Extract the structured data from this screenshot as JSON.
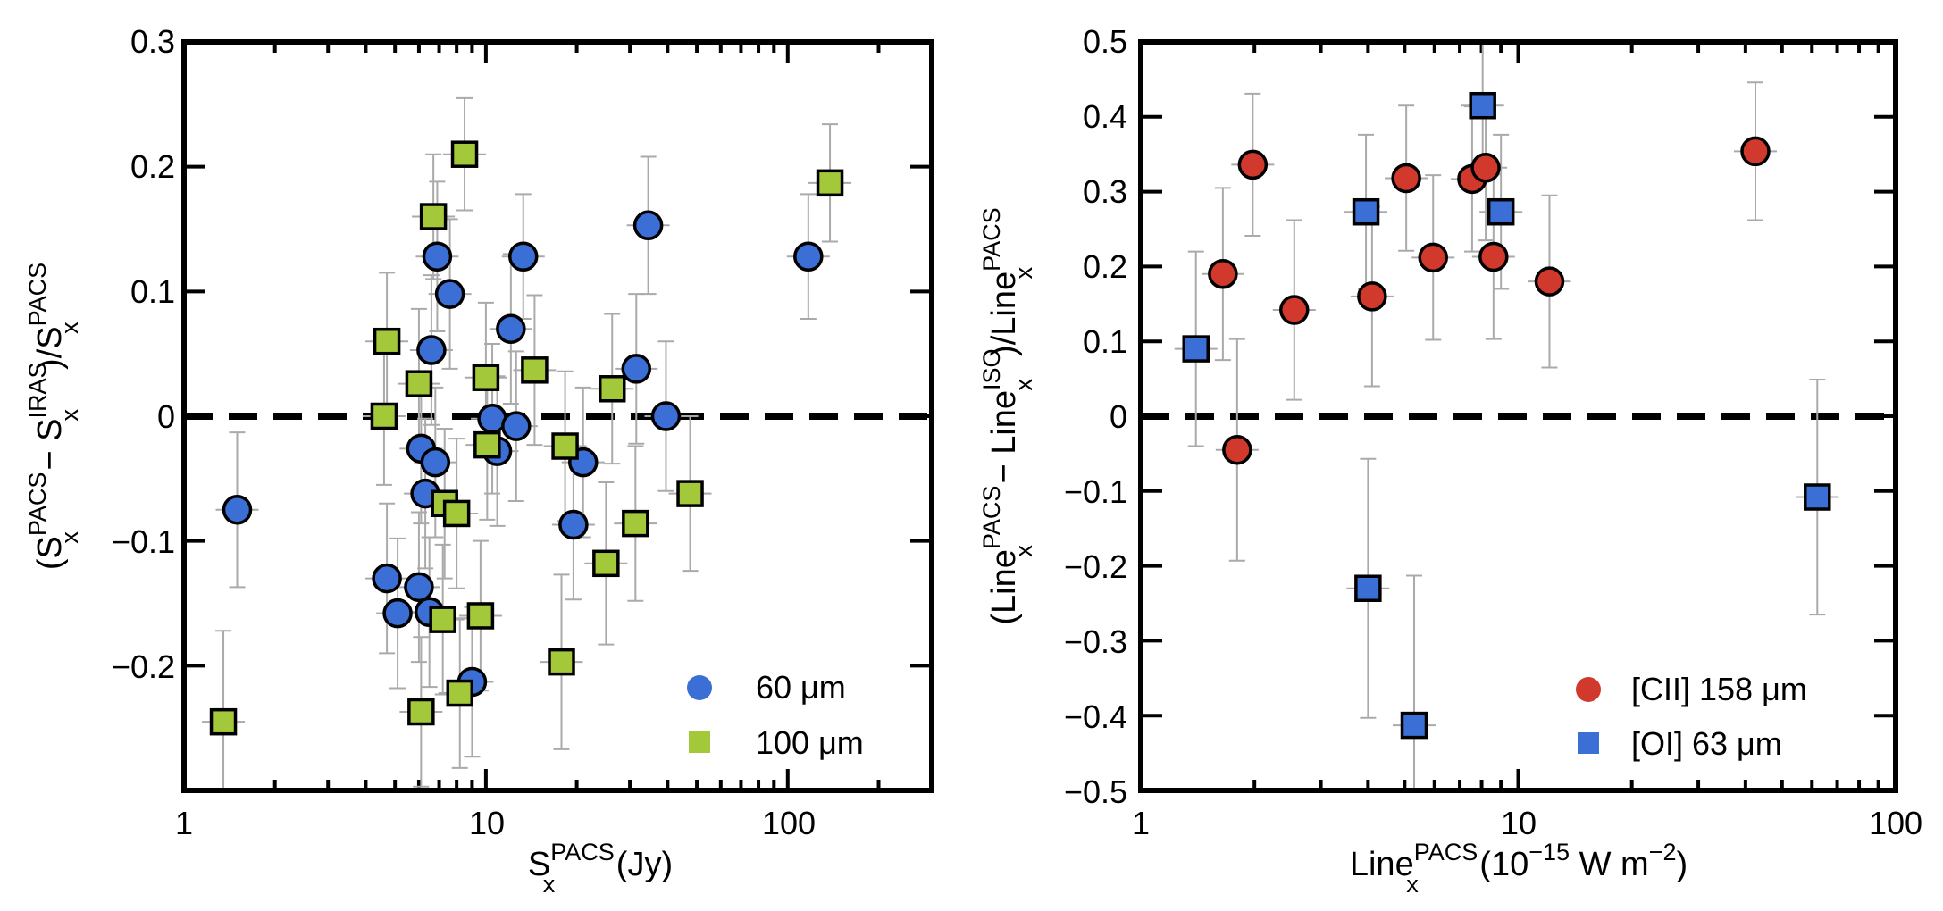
{
  "chart_data": [
    {
      "type": "scatter",
      "xscale": "log",
      "xlim": [
        1,
        300
      ],
      "ylim": [
        -0.3,
        0.3
      ],
      "yticks": [
        "0.3",
        "0.2",
        "0.1",
        "0",
        "−0.1",
        "−0.2"
      ],
      "ytick_values": [
        0.3,
        0.2,
        0.1,
        0,
        -0.1,
        -0.2
      ],
      "xticks": [
        "1",
        "10",
        "100"
      ],
      "xtick_values": [
        1,
        10,
        100
      ],
      "xlabel": {
        "main": "S",
        "sub": "x",
        "sup": "PACS",
        "unit": " (Jy)"
      },
      "ylabel": {
        "p1": "(S",
        "sup1": "PACS",
        "sub1": "x",
        "mid": " − S",
        "sup2": "IRAS",
        "sub2": "x",
        "p3": ")/S",
        "sup3": "PACS",
        "sub3": "x"
      },
      "reference_line": 0,
      "legend_position": "bottom-right",
      "series": [
        {
          "name": "60 μm",
          "marker": "circle",
          "color": "#3b6fd6",
          "points": [
            {
              "x": 1.5,
              "y": -0.075,
              "err": 0.062
            },
            {
              "x": 4.7,
              "y": -0.13,
              "err": 0.06
            },
            {
              "x": 5.1,
              "y": -0.158,
              "err": 0.06
            },
            {
              "x": 6.0,
              "y": -0.137,
              "err": 0.06
            },
            {
              "x": 6.1,
              "y": -0.026,
              "err": 0.06
            },
            {
              "x": 6.3,
              "y": -0.062,
              "err": 0.06
            },
            {
              "x": 6.5,
              "y": -0.157,
              "err": 0.06
            },
            {
              "x": 6.6,
              "y": 0.053,
              "err": 0.06
            },
            {
              "x": 6.8,
              "y": -0.037,
              "err": 0.06
            },
            {
              "x": 6.9,
              "y": 0.128,
              "err": 0.06
            },
            {
              "x": 7.6,
              "y": 0.098,
              "err": 0.06
            },
            {
              "x": 9.0,
              "y": -0.213,
              "err": 0.06
            },
            {
              "x": 10.5,
              "y": -0.002,
              "err": 0.06
            },
            {
              "x": 10.9,
              "y": -0.028,
              "err": 0.06
            },
            {
              "x": 12.1,
              "y": 0.07,
              "err": 0.06
            },
            {
              "x": 12.6,
              "y": -0.008,
              "err": 0.06
            },
            {
              "x": 13.3,
              "y": 0.128,
              "err": 0.05
            },
            {
              "x": 19.5,
              "y": -0.087,
              "err": 0.06
            },
            {
              "x": 21.0,
              "y": -0.037,
              "err": 0.06
            },
            {
              "x": 31.5,
              "y": 0.038,
              "err": 0.06
            },
            {
              "x": 34.5,
              "y": 0.153,
              "err": 0.055
            },
            {
              "x": 39.5,
              "y": 0.0,
              "err": 0.06
            },
            {
              "x": 117,
              "y": 0.128,
              "err": 0.05
            }
          ]
        },
        {
          "name": "100 μm",
          "marker": "square",
          "color": "#a3c93a",
          "points": [
            {
              "x": 1.35,
              "y": -0.245,
              "err": 0.073
            },
            {
              "x": 4.6,
              "y": 0.0,
              "err": 0.055
            },
            {
              "x": 4.7,
              "y": 0.06,
              "err": 0.055
            },
            {
              "x": 6.0,
              "y": 0.026,
              "err": 0.06
            },
            {
              "x": 6.1,
              "y": -0.237,
              "err": 0.06
            },
            {
              "x": 6.7,
              "y": 0.16,
              "err": 0.05
            },
            {
              "x": 7.2,
              "y": -0.163,
              "err": 0.06
            },
            {
              "x": 7.3,
              "y": -0.07,
              "err": 0.06
            },
            {
              "x": 8.0,
              "y": -0.078,
              "err": 0.06
            },
            {
              "x": 8.2,
              "y": -0.222,
              "err": 0.06
            },
            {
              "x": 8.5,
              "y": 0.21,
              "err": 0.045
            },
            {
              "x": 9.6,
              "y": -0.16,
              "err": 0.06
            },
            {
              "x": 10.0,
              "y": 0.031,
              "err": 0.06
            },
            {
              "x": 10.1,
              "y": -0.023,
              "err": 0.06
            },
            {
              "x": 14.5,
              "y": 0.037,
              "err": 0.06
            },
            {
              "x": 17.8,
              "y": -0.197,
              "err": 0.07
            },
            {
              "x": 18.3,
              "y": -0.024,
              "err": 0.06
            },
            {
              "x": 25.0,
              "y": -0.118,
              "err": 0.065
            },
            {
              "x": 26.2,
              "y": 0.022,
              "err": 0.06
            },
            {
              "x": 31.3,
              "y": -0.086,
              "err": 0.062
            },
            {
              "x": 47.5,
              "y": -0.062,
              "err": 0.062
            },
            {
              "x": 138,
              "y": 0.187,
              "err": 0.047
            }
          ]
        }
      ]
    },
    {
      "type": "scatter",
      "xscale": "log",
      "xlim": [
        1,
        100
      ],
      "ylim": [
        -0.5,
        0.5
      ],
      "yticks": [
        "0.5",
        "0.4",
        "0.3",
        "0.2",
        "0.1",
        "0",
        "−0.1",
        "−0.2",
        "−0.3",
        "−0.4",
        "−0.5"
      ],
      "ytick_values": [
        0.5,
        0.4,
        0.3,
        0.2,
        0.1,
        0,
        -0.1,
        -0.2,
        -0.3,
        -0.4,
        -0.5
      ],
      "xticks": [
        "1",
        "10",
        "100"
      ],
      "xtick_values": [
        1,
        10,
        100
      ],
      "xlabel": {
        "main": "Line",
        "sub": "x",
        "sup": "PACS",
        "unit1": " (10",
        "unitsup": "−15",
        "unit2": " W m",
        "unitsup2": "−2",
        "unit3": ")"
      },
      "ylabel": {
        "p1": "(Line",
        "sup1": "PACS",
        "sub1": "x",
        "mid": " − Line",
        "sup2": "ISO",
        "sub2": "x",
        "p3": ")/Line",
        "sup3": "PACS",
        "sub3": "x"
      },
      "reference_line": 0,
      "legend_position": "bottom-right",
      "series": [
        {
          "name": "[CII] 158 μm",
          "marker": "circle",
          "color": "#d0392b",
          "points": [
            {
              "x": 1.65,
              "y": 0.19,
              "err": 0.115
            },
            {
              "x": 1.8,
              "y": -0.045,
              "err": 0.148
            },
            {
              "x": 1.98,
              "y": 0.336,
              "err": 0.095
            },
            {
              "x": 2.55,
              "y": 0.142,
              "err": 0.12
            },
            {
              "x": 4.1,
              "y": 0.16,
              "err": 0.12
            },
            {
              "x": 5.05,
              "y": 0.318,
              "err": 0.097
            },
            {
              "x": 5.95,
              "y": 0.212,
              "err": 0.11
            },
            {
              "x": 7.55,
              "y": 0.317,
              "err": 0.097
            },
            {
              "x": 8.2,
              "y": 0.332,
              "err": 0.097
            },
            {
              "x": 8.6,
              "y": 0.213,
              "err": 0.11
            },
            {
              "x": 12.1,
              "y": 0.18,
              "err": 0.115
            },
            {
              "x": 42.5,
              "y": 0.354,
              "err": 0.092
            }
          ]
        },
        {
          "name": "[OI] 63 μm",
          "marker": "square",
          "color": "#3b6fd6",
          "points": [
            {
              "x": 1.4,
              "y": 0.09,
              "err": 0.13
            },
            {
              "x": 3.95,
              "y": 0.273,
              "err": 0.103
            },
            {
              "x": 4.0,
              "y": -0.23,
              "err": 0.173
            },
            {
              "x": 5.3,
              "y": -0.413,
              "err": 0.2
            },
            {
              "x": 8.05,
              "y": 0.415,
              "err": 0.085
            },
            {
              "x": 9.0,
              "y": 0.273,
              "err": 0.103
            },
            {
              "x": 62,
              "y": -0.108,
              "err": 0.157
            }
          ]
        }
      ]
    }
  ]
}
